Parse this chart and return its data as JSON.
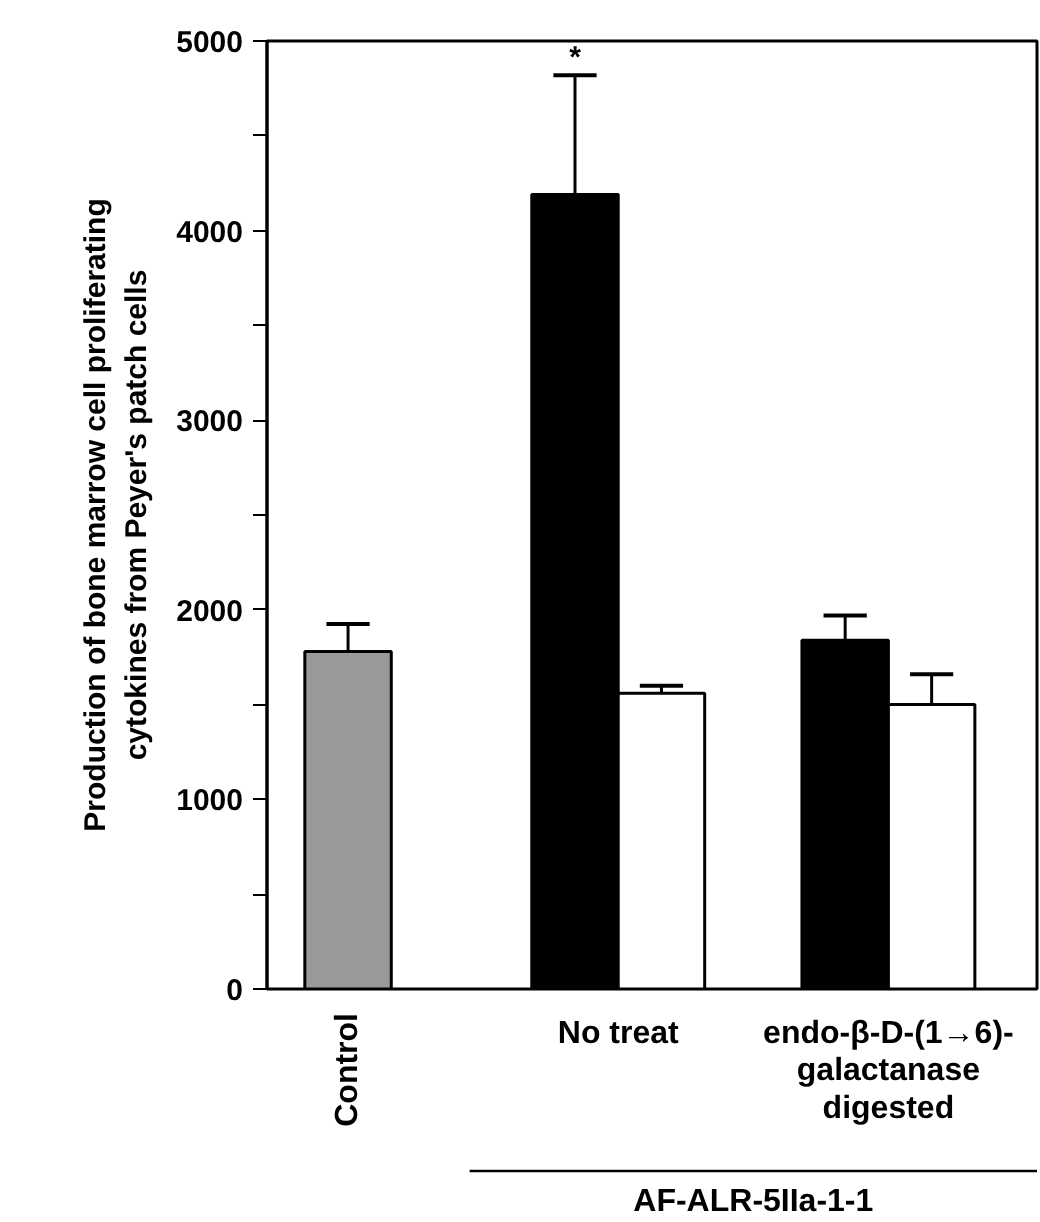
{
  "chart_data": {
    "type": "bar",
    "ylabel": "Production of bone marrow cell proliferating\ncytokines from Peyer's patch cells",
    "categories": [
      "Control",
      "No treat",
      "endo-β-D-(1→6)-\ngalactanase\ndigested"
    ],
    "series": [
      {
        "color": "#999999",
        "values": [
          1780,
          null,
          null
        ],
        "errors": [
          [
            1780,
            1925
          ],
          null,
          null
        ]
      },
      {
        "color": "#000000",
        "values": [
          null,
          4190,
          1840
        ],
        "errors": [
          null,
          [
            4190,
            4820
          ],
          [
            1840,
            1970
          ]
        ]
      },
      {
        "color": "#ffffff",
        "values": [
          null,
          1560,
          1500
        ],
        "errors": [
          null,
          [
            1560,
            1600
          ],
          [
            1500,
            1660
          ]
        ]
      }
    ],
    "ylim": [
      0,
      5000
    ],
    "yticks": [
      0,
      {
        "value": 500,
        "label": null
      },
      1000,
      {
        "value": 1500,
        "label": null
      },
      2000,
      {
        "value": 2500,
        "label": null
      },
      3000,
      {
        "value": 3500,
        "label": null
      },
      4000,
      {
        "value": 4500,
        "label": null
      },
      5000
    ],
    "grid": false,
    "annotations": [
      "*",
      "AF-ALR-5IIa-1-1"
    ]
  }
}
